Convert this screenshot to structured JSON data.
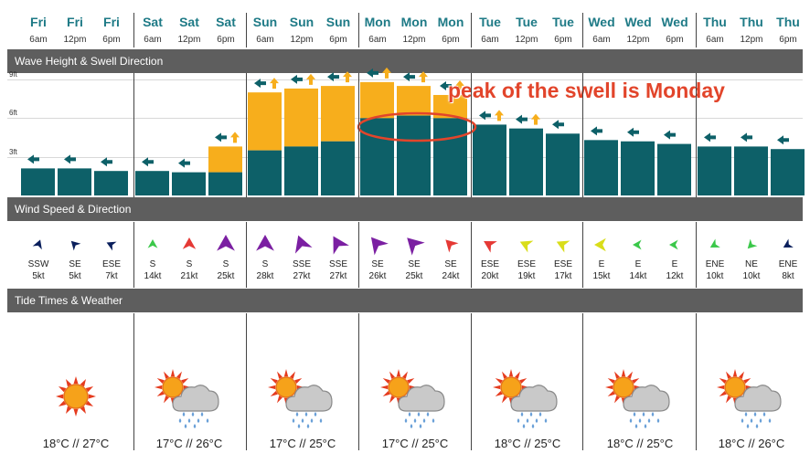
{
  "days": [
    "Fri",
    "Fri",
    "Fri",
    "Sat",
    "Sat",
    "Sat",
    "Sun",
    "Sun",
    "Sun",
    "Mon",
    "Mon",
    "Mon",
    "Tue",
    "Tue",
    "Tue",
    "Wed",
    "Wed",
    "Wed",
    "Thu",
    "Thu",
    "Thu"
  ],
  "times": [
    "6am",
    "12pm",
    "6pm",
    "6am",
    "12pm",
    "6pm",
    "6am",
    "12pm",
    "6pm",
    "6am",
    "12pm",
    "6pm",
    "6am",
    "12pm",
    "6pm",
    "6am",
    "12pm",
    "6pm",
    "6am",
    "12pm",
    "6pm"
  ],
  "sections": {
    "wave": "Wave Height & Swell Direction",
    "wind": "Wind Speed & Direction",
    "tide": "Tide Times & Weather"
  },
  "wave_axis": [
    "9ft",
    "6ft",
    "3ft"
  ],
  "colors": {
    "swell": "#0d6068",
    "wave_total": "#f7ae1c",
    "header_bar": "#5e5e5e",
    "annotation": "#e2452b",
    "day_text": "#1e7a86"
  },
  "chart_data": {
    "type": "bar",
    "categories": [
      "Fri 6am",
      "Fri 12pm",
      "Fri 6pm",
      "Sat 6am",
      "Sat 12pm",
      "Sat 6pm",
      "Sun 6am",
      "Sun 12pm",
      "Sun 6pm",
      "Mon 6am",
      "Mon 12pm",
      "Mon 6pm",
      "Tue 6am",
      "Tue 12pm",
      "Tue 6pm",
      "Wed 6am",
      "Wed 12pm",
      "Wed 6pm",
      "Thu 6am",
      "Thu 12pm",
      "Thu 6pm"
    ],
    "series": [
      {
        "values": [
          2.1,
          2.1,
          1.9,
          1.9,
          1.8,
          1.8,
          3.5,
          3.8,
          4.2,
          6.0,
          6.2,
          6.0,
          5.5,
          5.2,
          4.8,
          4.3,
          4.2,
          4.0,
          3.8,
          3.8,
          3.6
        ]
      },
      {
        "values": [
          2.1,
          2.1,
          1.9,
          1.9,
          1.8,
          3.8,
          8.0,
          8.3,
          8.5,
          8.8,
          8.5,
          7.8,
          5.5,
          5.2,
          4.8,
          4.3,
          4.2,
          4.0,
          3.8,
          3.8,
          3.6
        ]
      }
    ],
    "ylim": [
      0,
      9.5
    ],
    "yticks": [
      "3ft",
      "6ft",
      "9ft"
    ]
  },
  "swell_arrows": [
    "left",
    "left",
    "left",
    "left",
    "left",
    "left-up",
    "left-up",
    "left-up",
    "left-up",
    "left-up",
    "left-up",
    "left-up",
    "left-up",
    "left-up",
    "left",
    "left",
    "left",
    "left",
    "left",
    "left",
    "left"
  ],
  "wind": [
    {
      "dir": "SSW",
      "speed": "5kt",
      "color": "#0a1f5c",
      "size": "s",
      "rot": 20
    },
    {
      "dir": "SE",
      "speed": "5kt",
      "color": "#0a1f5c",
      "size": "s",
      "rot": -45
    },
    {
      "dir": "ESE",
      "speed": "7kt",
      "color": "#0a1f5c",
      "size": "s",
      "rot": -65
    },
    {
      "dir": "S",
      "speed": "14kt",
      "color": "#3bc84a",
      "size": "s",
      "rot": 0
    },
    {
      "dir": "S",
      "speed": "21kt",
      "color": "#e53935",
      "size": "m",
      "rot": 0
    },
    {
      "dir": "S",
      "speed": "25kt",
      "color": "#7b1fa2",
      "size": "l",
      "rot": 0
    },
    {
      "dir": "S",
      "speed": "28kt",
      "color": "#7b1fa2",
      "size": "l",
      "rot": 0
    },
    {
      "dir": "SSE",
      "speed": "27kt",
      "color": "#7b1fa2",
      "size": "l",
      "rot": -20
    },
    {
      "dir": "SSE",
      "speed": "27kt",
      "color": "#7b1fa2",
      "size": "l",
      "rot": -30
    },
    {
      "dir": "SE",
      "speed": "26kt",
      "color": "#7b1fa2",
      "size": "l",
      "rot": -40
    },
    {
      "dir": "SE",
      "speed": "25kt",
      "color": "#7b1fa2",
      "size": "l",
      "rot": -45
    },
    {
      "dir": "SE",
      "speed": "24kt",
      "color": "#e53935",
      "size": "m",
      "rot": -45
    },
    {
      "dir": "ESE",
      "speed": "20kt",
      "color": "#e53935",
      "size": "m",
      "rot": -60
    },
    {
      "dir": "ESE",
      "speed": "19kt",
      "color": "#d9dd1a",
      "size": "m",
      "rot": -65
    },
    {
      "dir": "ESE",
      "speed": "17kt",
      "color": "#d9dd1a",
      "size": "m",
      "rot": -65
    },
    {
      "dir": "E",
      "speed": "15kt",
      "color": "#d9dd1a",
      "size": "m",
      "rot": -90
    },
    {
      "dir": "E",
      "speed": "14kt",
      "color": "#3bc84a",
      "size": "s",
      "rot": -90
    },
    {
      "dir": "E",
      "speed": "12kt",
      "color": "#3bc84a",
      "size": "s",
      "rot": -90
    },
    {
      "dir": "ENE",
      "speed": "10kt",
      "color": "#3bc84a",
      "size": "s",
      "rot": -120
    },
    {
      "dir": "NE",
      "speed": "10kt",
      "color": "#3bc84a",
      "size": "s",
      "rot": -135
    },
    {
      "dir": "ENE",
      "speed": "8kt",
      "color": "#0a1f5c",
      "size": "s",
      "rot": -120
    }
  ],
  "weather": [
    {
      "icon": "sun-icon",
      "temp": "18°C // 27°C"
    },
    {
      "icon": "sun-cloud-rain-icon",
      "temp": "17°C // 26°C"
    },
    {
      "icon": "sun-cloud-rain-icon",
      "temp": "17°C // 25°C"
    },
    {
      "icon": "sun-cloud-rain-icon",
      "temp": "17°C // 25°C"
    },
    {
      "icon": "sun-cloud-rain-icon",
      "temp": "18°C // 25°C"
    },
    {
      "icon": "sun-cloud-rain-icon",
      "temp": "18°C // 25°C"
    },
    {
      "icon": "sun-cloud-rain-icon",
      "temp": "18°C // 26°C"
    }
  ],
  "annotation": "peak of the swell is Monday"
}
